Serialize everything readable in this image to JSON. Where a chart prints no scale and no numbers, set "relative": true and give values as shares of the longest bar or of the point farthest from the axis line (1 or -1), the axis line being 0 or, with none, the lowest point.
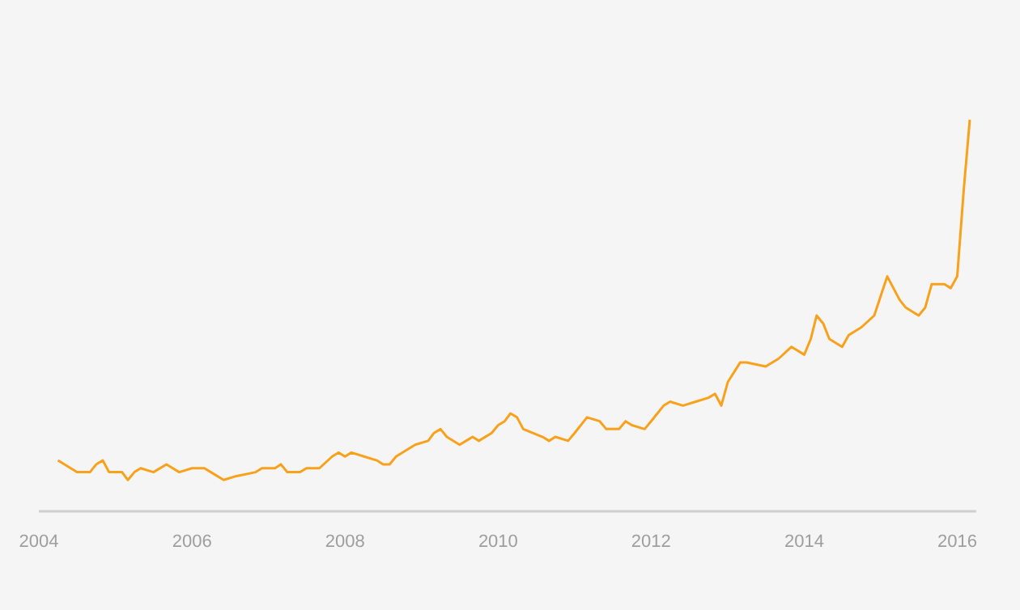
{
  "chart_data": {
    "type": "line",
    "relative": true,
    "xlim": [
      "2004-01",
      "2016-04"
    ],
    "xticks": [
      {
        "value": "2004-01",
        "label": "2004"
      },
      {
        "value": "2006-01",
        "label": "2006"
      },
      {
        "value": "2008-01",
        "label": "2008"
      },
      {
        "value": "2010-01",
        "label": "2010"
      },
      {
        "value": "2012-01",
        "label": "2012"
      },
      {
        "value": "2014-01",
        "label": "2014"
      },
      {
        "value": "2016-01",
        "label": "2016"
      }
    ],
    "marker": "none",
    "line_style": "solid",
    "series": [
      {
        "color": "#f9a11b",
        "x": [
          "2004-04",
          "2004-06",
          "2004-07",
          "2004-09",
          "2004-10",
          "2004-11",
          "2004-12",
          "2005-01",
          "2005-02",
          "2005-03",
          "2005-04",
          "2005-05",
          "2005-07",
          "2005-09",
          "2005-10",
          "2005-11",
          "2006-01",
          "2006-03",
          "2006-04",
          "2006-06",
          "2006-08",
          "2006-11",
          "2006-12",
          "2007-02",
          "2007-03",
          "2007-04",
          "2007-06",
          "2007-07",
          "2007-09",
          "2007-11",
          "2007-12",
          "2008-01",
          "2008-02",
          "2008-04",
          "2008-06",
          "2008-07",
          "2008-08",
          "2008-09",
          "2008-11",
          "2008-12",
          "2009-02",
          "2009-03",
          "2009-04",
          "2009-05",
          "2009-07",
          "2009-08",
          "2009-09",
          "2009-10",
          "2009-12",
          "2010-01",
          "2010-02",
          "2010-03",
          "2010-04",
          "2010-05",
          "2010-08",
          "2010-09",
          "2010-10",
          "2010-12",
          "2011-01",
          "2011-03",
          "2011-05",
          "2011-06",
          "2011-08",
          "2011-09",
          "2011-10",
          "2011-12",
          "2012-01",
          "2012-03",
          "2012-04",
          "2012-06",
          "2012-08",
          "2012-10",
          "2012-11",
          "2012-12",
          "2013-01",
          "2013-03",
          "2013-04",
          "2013-07",
          "2013-09",
          "2013-11",
          "2014-01",
          "2014-02",
          "2014-03",
          "2014-04",
          "2014-05",
          "2014-07",
          "2014-08",
          "2014-10",
          "2014-12",
          "2015-01",
          "2015-02",
          "2015-04",
          "2015-05",
          "2015-06",
          "2015-07",
          "2015-08",
          "2015-09",
          "2015-11",
          "2015-12",
          "2016-01",
          "2016-02",
          "2016-03"
        ],
        "values": [
          0.13,
          0.11,
          0.1,
          0.1,
          0.12,
          0.13,
          0.1,
          0.1,
          0.1,
          0.08,
          0.1,
          0.11,
          0.1,
          0.12,
          0.11,
          0.1,
          0.11,
          0.11,
          0.1,
          0.08,
          0.09,
          0.1,
          0.11,
          0.11,
          0.12,
          0.1,
          0.1,
          0.11,
          0.11,
          0.14,
          0.15,
          0.14,
          0.15,
          0.14,
          0.13,
          0.12,
          0.12,
          0.14,
          0.16,
          0.17,
          0.18,
          0.2,
          0.21,
          0.19,
          0.17,
          0.18,
          0.19,
          0.18,
          0.2,
          0.22,
          0.23,
          0.25,
          0.24,
          0.21,
          0.19,
          0.18,
          0.19,
          0.18,
          0.2,
          0.24,
          0.23,
          0.21,
          0.21,
          0.23,
          0.22,
          0.21,
          0.23,
          0.27,
          0.28,
          0.27,
          0.28,
          0.29,
          0.3,
          0.27,
          0.33,
          0.38,
          0.38,
          0.37,
          0.39,
          0.42,
          0.4,
          0.44,
          0.5,
          0.48,
          0.44,
          0.42,
          0.45,
          0.47,
          0.5,
          0.55,
          0.6,
          0.54,
          0.52,
          0.51,
          0.5,
          0.52,
          0.58,
          0.58,
          0.57,
          0.6,
          0.82,
          1.0
        ]
      }
    ]
  }
}
